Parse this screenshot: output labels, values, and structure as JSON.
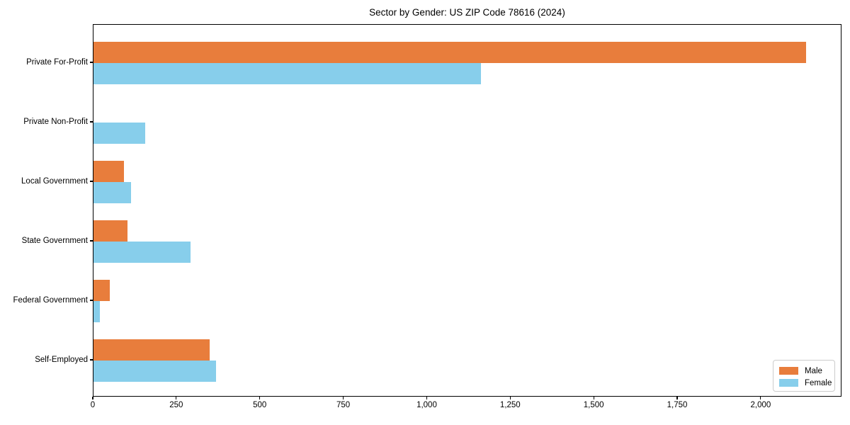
{
  "title": "Sector by Gender: US ZIP Code 78616 (2024)",
  "colors": {
    "male": "#e87d3c",
    "female": "#87ceeb",
    "axis": "#000000",
    "legend_border": "#cccccc",
    "background": "#ffffff"
  },
  "legend": {
    "position": "lower right",
    "items": [
      {
        "label": "Male",
        "color_key": "male"
      },
      {
        "label": "Female",
        "color_key": "female"
      }
    ]
  },
  "chart_data": {
    "type": "bar",
    "orientation": "horizontal",
    "title": "Sector by Gender: US ZIP Code 78616 (2024)",
    "xlabel": "",
    "ylabel": "",
    "categories": [
      "Private For-Profit",
      "Private Non-Profit",
      "Local Government",
      "State Government",
      "Federal Government",
      "Self-Employed"
    ],
    "series": [
      {
        "name": "Male",
        "color_key": "male",
        "values": [
          2134,
          0,
          92,
          101,
          48,
          347
        ]
      },
      {
        "name": "Female",
        "color_key": "female",
        "values": [
          1160,
          154,
          113,
          290,
          19,
          368
        ]
      }
    ],
    "x_ticks": [
      0,
      250,
      500,
      750,
      1000,
      1250,
      1500,
      1750,
      2000
    ],
    "x_tick_labels": [
      "0",
      "250",
      "500",
      "750",
      "1,000",
      "1,250",
      "1,500",
      "1,750",
      "2,000"
    ],
    "xlim": [
      0,
      2242
    ],
    "grid": false,
    "legend_position": "lower right"
  }
}
